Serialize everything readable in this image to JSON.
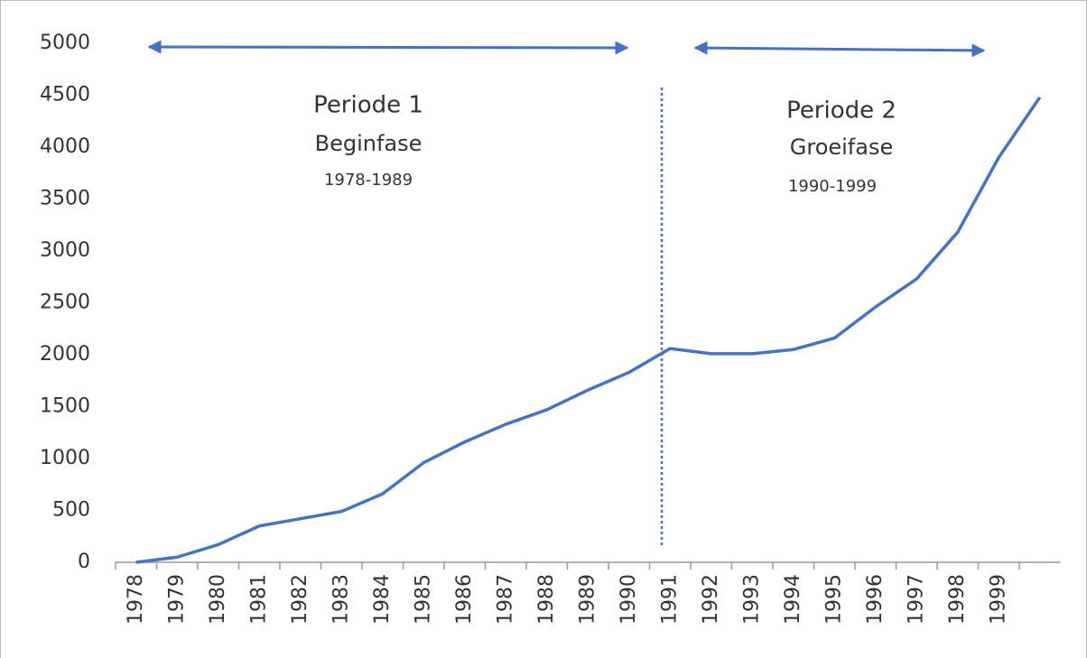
{
  "chart_data": {
    "type": "line",
    "categories": [
      "1978",
      "1979",
      "1980",
      "1981",
      "1982",
      "1983",
      "1984",
      "1985",
      "1986",
      "1987",
      "1988",
      "1989",
      "1990",
      "1991",
      "1992",
      "1993",
      "1994",
      "1995",
      "1996",
      "1997",
      "1998",
      "1999",
      null
    ],
    "series": [
      {
        "color": "#4472c4",
        "values": [
          0,
          50,
          170,
          350,
          420,
          490,
          660,
          960,
          1160,
          1330,
          1470,
          1660,
          1830,
          2060,
          2010,
          2010,
          2050,
          2160,
          2460,
          2730,
          3180,
          3900,
          4480
        ]
      }
    ],
    "ylim": [
      0,
      5000
    ],
    "yticks": [
      0,
      500,
      1000,
      1500,
      2000,
      2500,
      3000,
      3500,
      4000,
      4500,
      5000
    ],
    "grid": false,
    "annotations": [
      {
        "lines": [
          "Periode 1",
          "Beginfase",
          "1978-1989"
        ]
      },
      {
        "lines": [
          "Periode 2",
          "Groeifase",
          "1990-1999"
        ]
      }
    ]
  }
}
